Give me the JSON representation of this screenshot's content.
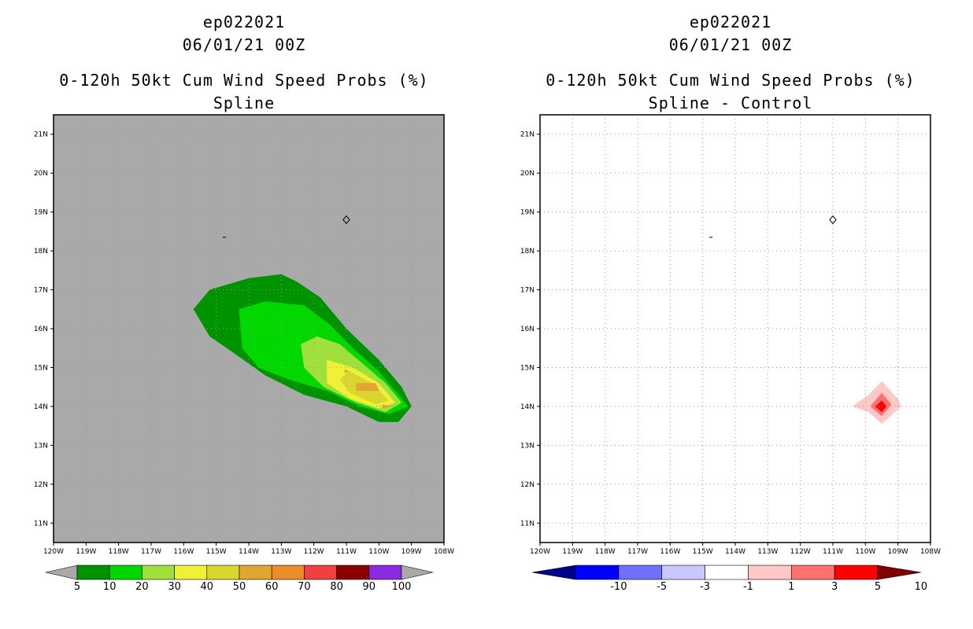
{
  "chart_data": [
    {
      "type": "contour",
      "title_lines": [
        "ep022021",
        "06/01/21 00Z",
        "0-120h 50kt Cum Wind Speed Probs (%)",
        "Spline"
      ],
      "x_tick_labels": [
        "120W",
        "119W",
        "118W",
        "117W",
        "116W",
        "115W",
        "114W",
        "113W",
        "112W",
        "111W",
        "110W",
        "109W",
        "108W"
      ],
      "y_tick_labels": [
        "11N",
        "12N",
        "13N",
        "14N",
        "15N",
        "16N",
        "17N",
        "18N",
        "19N",
        "20N",
        "21N"
      ],
      "xlim": [
        -120,
        -108
      ],
      "ylim": [
        10.5,
        21.5
      ],
      "grid": true,
      "background": "#a9a9a9",
      "contour_levels": [
        5,
        10,
        20,
        30,
        40,
        50,
        60,
        70,
        80,
        90,
        100
      ],
      "colorbar_labels": [
        "5",
        "10",
        "20",
        "30",
        "40",
        "50",
        "60",
        "70",
        "80",
        "90",
        "100"
      ],
      "colorbar_colors": [
        "#009300",
        "#00d800",
        "#9fe03c",
        "#f0f036",
        "#d9d62f",
        "#e1a532",
        "#ec8c28",
        "#f04040",
        "#8b0000",
        "#8a2be2"
      ],
      "colorbar_end_colors": [
        "#a9a9a9",
        "#a9a9a9"
      ],
      "regions": [
        {
          "level": 5,
          "color": "#009300",
          "points": [
            [
              -115.7,
              16.5
            ],
            [
              -115.2,
              17.0
            ],
            [
              -114.0,
              17.3
            ],
            [
              -113.0,
              17.4
            ],
            [
              -112.5,
              17.2
            ],
            [
              -111.8,
              16.8
            ],
            [
              -111.0,
              16.0
            ],
            [
              -110.0,
              15.2
            ],
            [
              -109.3,
              14.5
            ],
            [
              -109.0,
              14.0
            ],
            [
              -109.4,
              13.6
            ],
            [
              -110.0,
              13.6
            ],
            [
              -111.0,
              14.0
            ],
            [
              -112.3,
              14.3
            ],
            [
              -113.5,
              14.8
            ],
            [
              -114.5,
              15.4
            ],
            [
              -115.2,
              15.8
            ]
          ]
        },
        {
          "level": 10,
          "color": "#00d800",
          "points": [
            [
              -114.3,
              16.5
            ],
            [
              -113.5,
              16.7
            ],
            [
              -112.3,
              16.6
            ],
            [
              -111.5,
              16.1
            ],
            [
              -110.8,
              15.5
            ],
            [
              -110.0,
              14.9
            ],
            [
              -109.4,
              14.3
            ],
            [
              -109.1,
              14.0
            ],
            [
              -109.7,
              13.8
            ],
            [
              -110.6,
              14.0
            ],
            [
              -111.6,
              14.4
            ],
            [
              -112.8,
              14.7
            ],
            [
              -113.7,
              15.0
            ],
            [
              -114.2,
              15.5
            ]
          ]
        },
        {
          "level": 20,
          "color": "#9fe03c",
          "points": [
            [
              -112.4,
              15.6
            ],
            [
              -111.9,
              15.8
            ],
            [
              -111.2,
              15.6
            ],
            [
              -110.5,
              15.1
            ],
            [
              -109.8,
              14.6
            ],
            [
              -109.3,
              14.1
            ],
            [
              -109.8,
              13.85
            ],
            [
              -110.7,
              14.1
            ],
            [
              -111.7,
              14.5
            ],
            [
              -112.3,
              15.0
            ]
          ]
        },
        {
          "level": 30,
          "color": "#f0f036",
          "points": [
            [
              -111.6,
              15.2
            ],
            [
              -110.8,
              15.0
            ],
            [
              -110.0,
              14.6
            ],
            [
              -109.5,
              14.1
            ],
            [
              -110.0,
              13.95
            ],
            [
              -110.9,
              14.2
            ],
            [
              -111.6,
              14.6
            ]
          ]
        },
        {
          "level": 40,
          "color": "#d9d62f",
          "points": [
            [
              -110.9,
              14.9
            ],
            [
              -110.2,
              14.6
            ],
            [
              -109.7,
              14.15
            ],
            [
              -110.1,
              14.05
            ],
            [
              -110.9,
              14.35
            ],
            [
              -111.2,
              14.7
            ]
          ]
        },
        {
          "level": 50,
          "color": "#e1a532",
          "points": [
            [
              -110.7,
              14.6
            ],
            [
              -110.1,
              14.6
            ],
            [
              -110.0,
              14.4
            ],
            [
              -110.7,
              14.4
            ]
          ]
        },
        {
          "level": 50,
          "color": "#e1a532",
          "points": [
            [
              -109.9,
              14.05
            ],
            [
              -109.6,
              14.0
            ],
            [
              -109.9,
              13.95
            ]
          ]
        },
        {
          "level": 50,
          "color": "#e1a532",
          "points": [
            [
              -111.05,
              14.95
            ],
            [
              -110.9,
              14.9
            ],
            [
              -111.05,
              14.85
            ]
          ]
        }
      ],
      "coast_features": [
        {
          "name": "Isla Socorro",
          "points": [
            [
              -111.1,
              18.8
            ],
            [
              -111.0,
              18.9
            ],
            [
              -110.9,
              18.8
            ],
            [
              -111.0,
              18.7
            ]
          ]
        },
        {
          "name": "Isla Clarion",
          "points": [
            [
              -114.8,
              18.35
            ],
            [
              -114.7,
              18.35
            ]
          ]
        }
      ]
    },
    {
      "type": "contour",
      "title_lines": [
        "ep022021",
        "06/01/21 00Z",
        "0-120h 50kt Cum Wind Speed Probs (%)",
        "Spline - Control"
      ],
      "x_tick_labels": [
        "120W",
        "119W",
        "118W",
        "117W",
        "116W",
        "115W",
        "114W",
        "113W",
        "112W",
        "111W",
        "110W",
        "109W",
        "108W"
      ],
      "y_tick_labels": [
        "11N",
        "12N",
        "13N",
        "14N",
        "15N",
        "16N",
        "17N",
        "18N",
        "19N",
        "20N",
        "21N"
      ],
      "xlim": [
        -120,
        -108
      ],
      "ylim": [
        10.5,
        21.5
      ],
      "grid": true,
      "background": "#ffffff",
      "contour_levels": [
        -10,
        -5,
        -3,
        -1,
        1,
        3,
        5,
        10
      ],
      "colorbar_labels": [
        "-10",
        "-5",
        "-3",
        "-1",
        "1",
        "3",
        "5",
        "10"
      ],
      "colorbar_colors": [
        "#0000ff",
        "#7070ff",
        "#c8c8ff",
        "#ffffff",
        "#ffc8c8",
        "#ff7070",
        "#ff0000"
      ],
      "colorbar_end_colors": [
        "#00008b",
        "#800000"
      ],
      "regions": [
        {
          "level": 1,
          "color": "#ffc8c8",
          "points": [
            [
              -109.5,
              14.65
            ],
            [
              -109.0,
              14.2
            ],
            [
              -108.9,
              14.0
            ],
            [
              -109.3,
              13.7
            ],
            [
              -109.5,
              13.55
            ],
            [
              -109.9,
              13.85
            ],
            [
              -110.4,
              14.0
            ],
            [
              -109.9,
              14.3
            ]
          ]
        },
        {
          "level": 3,
          "color": "#ff7070",
          "points": [
            [
              -109.5,
              14.35
            ],
            [
              -109.2,
              14.05
            ],
            [
              -109.5,
              13.75
            ],
            [
              -109.85,
              14.0
            ]
          ]
        },
        {
          "level": 5,
          "color": "#ff0000",
          "points": [
            [
              -109.5,
              14.15
            ],
            [
              -109.35,
              14.0
            ],
            [
              -109.5,
              13.85
            ],
            [
              -109.7,
              14.0
            ]
          ]
        }
      ],
      "coast_features": [
        {
          "name": "Isla Socorro",
          "points": [
            [
              -111.1,
              18.8
            ],
            [
              -111.0,
              18.9
            ],
            [
              -110.9,
              18.8
            ],
            [
              -111.0,
              18.7
            ]
          ]
        },
        {
          "name": "Isla Clarion",
          "points": [
            [
              -114.8,
              18.35
            ],
            [
              -114.7,
              18.35
            ]
          ]
        }
      ]
    }
  ]
}
